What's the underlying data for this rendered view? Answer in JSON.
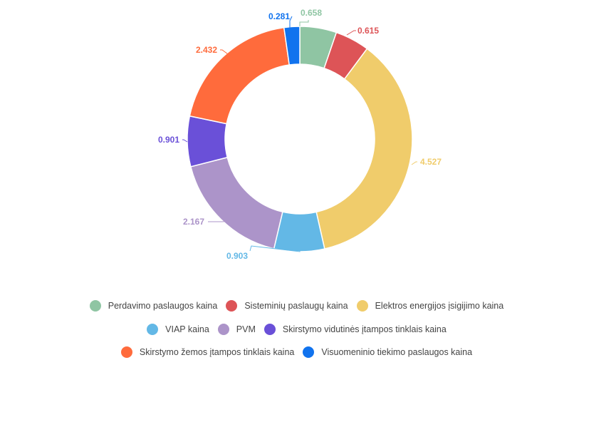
{
  "chart_data": {
    "type": "pie",
    "variant": "donut",
    "title": "",
    "series": [
      {
        "name": "Perdavimo paslaugos kaina",
        "value": 0.658,
        "label": "0.658",
        "color": "#8fc5a3"
      },
      {
        "name": "Sisteminių paslaugų kaina",
        "value": 0.615,
        "label": "0.615",
        "color": "#dd5457"
      },
      {
        "name": "Elektros energijos įsigijimo kaina",
        "value": 4.527,
        "label": "4.527",
        "color": "#f0cc6b"
      },
      {
        "name": "VIAP kaina",
        "value": 0.903,
        "label": "0.903",
        "color": "#63b8e6"
      },
      {
        "name": "PVM",
        "value": 2.167,
        "label": "2.167",
        "color": "#ac94c9"
      },
      {
        "name": "Skirstymo vidutinės įtampos tinklais kaina",
        "value": 0.901,
        "label": "0.901",
        "color": "#6a50d8"
      },
      {
        "name": "Skirstymo žemos įtampos tinklais kaina",
        "value": 2.432,
        "label": "2.432",
        "color": "#ff6b3c"
      },
      {
        "name": "Visuomeninio tiekimo paslaugos kaina",
        "value": 0.281,
        "label": "0.281",
        "color": "#1173ee"
      }
    ],
    "legend_position": "bottom",
    "start_angle": "top, clockwise"
  }
}
